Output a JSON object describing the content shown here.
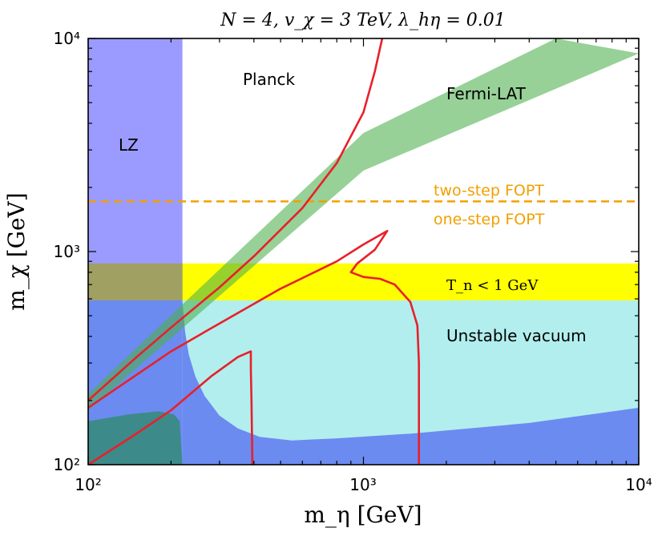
{
  "chart_data": {
    "type": "contour",
    "title": "N = 4,  v_χ = 3 TeV,  λ_hη = 0.01",
    "xlabel": "m_η [GeV]",
    "ylabel": "m_χ [GeV]",
    "xscale": "log",
    "yscale": "log",
    "xlim": [
      100,
      10000
    ],
    "ylim": [
      100,
      10000
    ],
    "x_tick_labels": [
      "10²",
      "10³",
      "10⁴"
    ],
    "y_tick_labels": [
      "10²",
      "10³",
      "10⁴"
    ],
    "regions": [
      {
        "name": "LZ",
        "color": "#9b9bff"
      },
      {
        "name": "Planck",
        "color": "#ffffff"
      },
      {
        "name": "Fermi-LAT",
        "color": "#8fc98f"
      },
      {
        "name": "Unstable vacuum",
        "color": "#b2eeee"
      },
      {
        "name": "T_n < 1 GeV",
        "color": "#ffff00"
      }
    ],
    "unstable_vacuum_boundary": [
      [
        220,
        590
      ],
      [
        225,
        420
      ],
      [
        232,
        330
      ],
      [
        245,
        260
      ],
      [
        265,
        210
      ],
      [
        300,
        170
      ],
      [
        350,
        148
      ],
      [
        420,
        135
      ],
      [
        550,
        130
      ],
      [
        800,
        133
      ],
      [
        1500,
        140
      ],
      [
        4000,
        157
      ],
      [
        10000,
        185
      ]
    ],
    "unstable_vacuum_ymax": 590,
    "tn_band": [
      590,
      880
    ],
    "lz_xmax": 220,
    "fermi_band_lower": [
      [
        100,
        180
      ],
      [
        1000,
        2400
      ],
      [
        10000,
        8500
      ]
    ],
    "fermi_band_upper": [
      [
        100,
        215
      ],
      [
        1000,
        3600
      ],
      [
        5000,
        10000
      ]
    ],
    "fopt_line_y": 1720,
    "fopt_label_upper": "two-step FOPT",
    "fopt_label_lower": "one-step FOPT",
    "tn_label": "T_n < 1 GeV",
    "labels": [
      "LZ",
      "Planck",
      "Fermi-LAT",
      "Unstable vacuum"
    ],
    "red_contours": [
      [
        [
          100,
          200
        ],
        [
          150,
          320
        ],
        [
          200,
          440
        ],
        [
          300,
          680
        ],
        [
          400,
          950
        ],
        [
          600,
          1600
        ],
        [
          800,
          2600
        ],
        [
          1000,
          4500
        ],
        [
          1100,
          7000
        ],
        [
          1170,
          10000
        ]
      ],
      [
        [
          100,
          185
        ],
        [
          200,
          340
        ],
        [
          300,
          460
        ],
        [
          500,
          670
        ],
        [
          800,
          900
        ],
        [
          1000,
          1080
        ],
        [
          1220,
          1250
        ],
        [
          1100,
          1020
        ],
        [
          950,
          880
        ],
        [
          900,
          800
        ],
        [
          1000,
          760
        ],
        [
          1150,
          745
        ],
        [
          1300,
          700
        ],
        [
          1480,
          580
        ],
        [
          1570,
          450
        ],
        [
          1590,
          300
        ],
        [
          1590,
          100
        ]
      ],
      [
        [
          100,
          100
        ],
        [
          150,
          140
        ],
        [
          200,
          180
        ],
        [
          280,
          260
        ],
        [
          350,
          320
        ],
        [
          390,
          340
        ],
        [
          390,
          280
        ],
        [
          392,
          200
        ],
        [
          395,
          100
        ]
      ]
    ]
  }
}
